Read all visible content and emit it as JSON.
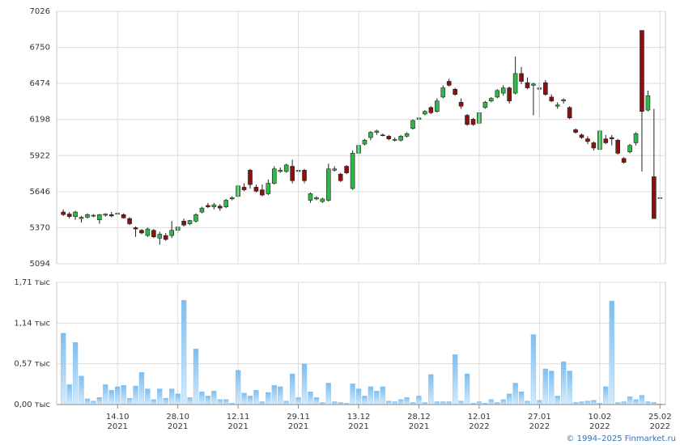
{
  "chart_data": [
    {
      "type": "candlestick",
      "open": [
        5490,
        5475,
        5455,
        5440,
        5450,
        5460,
        5430,
        5465,
        5470,
        5475,
        5470,
        5440,
        5370,
        5350,
        5310,
        5350,
        5290,
        5310,
        5310,
        5350,
        5420,
        5400,
        5420,
        5490,
        5540,
        5530,
        5535,
        5530,
        5590,
        5610,
        5680,
        5810,
        5680,
        5660,
        5630,
        5710,
        5800,
        5800,
        5840,
        5800,
        5810,
        5580,
        5590,
        5570,
        5580,
        5810,
        5780,
        5840,
        5670,
        5940,
        6010,
        6060,
        6100,
        6080,
        6070,
        6040,
        6040,
        6070,
        6130,
        6200,
        6240,
        6290,
        6260,
        6370,
        6490,
        6430,
        6330,
        6230,
        6200,
        6170,
        6290,
        6340,
        6370,
        6400,
        6440,
        6400,
        6550,
        6480,
        6460,
        6430,
        6480,
        6370,
        6300,
        6340,
        6290,
        6120,
        6080,
        6050,
        6020,
        5970,
        6050,
        6060,
        6040,
        5900,
        5950,
        6020,
        6880,
        6270,
        5760,
        5600
      ],
      "high": [
        5510,
        5490,
        5500,
        5460,
        5480,
        5475,
        5475,
        5480,
        5490,
        5490,
        5480,
        5450,
        5380,
        5360,
        5370,
        5360,
        5340,
        5330,
        5420,
        5380,
        5440,
        5430,
        5480,
        5530,
        5560,
        5560,
        5550,
        5590,
        5610,
        5700,
        5710,
        5820,
        5700,
        5700,
        5740,
        5840,
        5830,
        5860,
        5890,
        5820,
        5820,
        5640,
        5610,
        5600,
        5860,
        5840,
        5790,
        5850,
        5960,
        6010,
        6050,
        6110,
        6120,
        6090,
        6080,
        6060,
        6080,
        6100,
        6200,
        6220,
        6270,
        6300,
        6360,
        6460,
        6510,
        6440,
        6360,
        6240,
        6210,
        6270,
        6340,
        6370,
        6430,
        6460,
        6450,
        6680,
        6600,
        6520,
        6480,
        6480,
        6500,
        6390,
        6330,
        6360,
        6300,
        6130,
        6090,
        6070,
        6030,
        6120,
        6080,
        6080,
        6050,
        5910,
        6010,
        6100,
        6880,
        6420,
        6280,
        5600
      ],
      "low": [
        5460,
        5440,
        5430,
        5410,
        5440,
        5450,
        5400,
        5455,
        5450,
        5465,
        5440,
        5390,
        5300,
        5320,
        5300,
        5290,
        5240,
        5270,
        5290,
        5330,
        5380,
        5390,
        5410,
        5480,
        5520,
        5510,
        5500,
        5520,
        5580,
        5600,
        5650,
        5670,
        5640,
        5610,
        5620,
        5700,
        5790,
        5790,
        5710,
        5790,
        5710,
        5560,
        5580,
        5560,
        5570,
        5800,
        5720,
        5780,
        5660,
        5930,
        6000,
        6040,
        6080,
        6070,
        6040,
        6030,
        6030,
        6060,
        6120,
        6180,
        6230,
        6240,
        6250,
        6360,
        6450,
        6380,
        6280,
        6150,
        6150,
        6160,
        6280,
        6330,
        6360,
        6380,
        6320,
        6390,
        6470,
        6430,
        6230,
        6210,
        6380,
        6330,
        6280,
        6320,
        6200,
        6090,
        6050,
        6010,
        5960,
        5960,
        6010,
        6000,
        5930,
        5860,
        5940,
        6000,
        5800,
        6260,
        5440,
        5600
      ],
      "close": [
        5470,
        5455,
        5490,
        5450,
        5470,
        5465,
        5470,
        5475,
        5460,
        5480,
        5445,
        5400,
        5360,
        5330,
        5360,
        5300,
        5320,
        5280,
        5350,
        5375,
        5390,
        5425,
        5470,
        5520,
        5530,
        5545,
        5520,
        5580,
        5600,
        5690,
        5660,
        5700,
        5650,
        5620,
        5710,
        5820,
        5810,
        5850,
        5730,
        5810,
        5730,
        5630,
        5600,
        5590,
        5820,
        5820,
        5730,
        5790,
        5940,
        6000,
        6040,
        6100,
        6110,
        6075,
        6050,
        6045,
        6070,
        6090,
        6190,
        6210,
        6260,
        6250,
        6340,
        6440,
        6460,
        6390,
        6300,
        6160,
        6160,
        6250,
        6330,
        6360,
        6420,
        6440,
        6340,
        6550,
        6490,
        6440,
        6470,
        6440,
        6390,
        6340,
        6310,
        6350,
        6210,
        6100,
        6060,
        6030,
        5980,
        6110,
        6020,
        6050,
        5940,
        5870,
        6000,
        6090,
        6260,
        6380,
        5440,
        5600
      ],
      "ylim": [
        5094,
        7026
      ],
      "yticks": [
        5094,
        5370,
        5646,
        5922,
        6198,
        6474,
        6750,
        7026
      ],
      "up_color": "#2eb84a",
      "down_color": "#8b1010",
      "grid": true
    },
    {
      "type": "bar",
      "categories": [
        null,
        null,
        null,
        null,
        null,
        null,
        null,
        null,
        null,
        "14.10",
        null,
        null,
        null,
        null,
        null,
        null,
        null,
        null,
        null,
        "28.10",
        null,
        null,
        null,
        null,
        null,
        null,
        null,
        null,
        null,
        "12.11",
        null,
        null,
        null,
        null,
        null,
        null,
        null,
        null,
        null,
        "29.11",
        null,
        null,
        null,
        null,
        null,
        null,
        null,
        null,
        null,
        "13.12",
        null,
        null,
        null,
        null,
        null,
        null,
        null,
        null,
        null,
        "28.12",
        null,
        null,
        null,
        null,
        null,
        null,
        null,
        null,
        null,
        "12.01",
        null,
        null,
        null,
        null,
        null,
        null,
        null,
        null,
        null,
        "27.01",
        null,
        null,
        null,
        null,
        null,
        null,
        null,
        null,
        null,
        "10.02",
        null,
        null,
        null,
        null,
        null,
        null,
        null,
        null,
        null,
        "25.02"
      ],
      "category_years": [
        null,
        null,
        null,
        null,
        null,
        null,
        null,
        null,
        null,
        "2021",
        null,
        null,
        null,
        null,
        null,
        null,
        null,
        null,
        null,
        "2021",
        null,
        null,
        null,
        null,
        null,
        null,
        null,
        null,
        null,
        "2021",
        null,
        null,
        null,
        null,
        null,
        null,
        null,
        null,
        null,
        "2021",
        null,
        null,
        null,
        null,
        null,
        null,
        null,
        null,
        null,
        "2021",
        null,
        null,
        null,
        null,
        null,
        null,
        null,
        null,
        null,
        "2021",
        null,
        null,
        null,
        null,
        null,
        null,
        null,
        null,
        null,
        "2022",
        null,
        null,
        null,
        null,
        null,
        null,
        null,
        null,
        null,
        "2022",
        null,
        null,
        null,
        null,
        null,
        null,
        null,
        null,
        null,
        "2022",
        null,
        null,
        null,
        null,
        null,
        null,
        null,
        null,
        null,
        "2022"
      ],
      "values": [
        1.0,
        0.28,
        0.87,
        0.4,
        0.08,
        0.05,
        0.1,
        0.28,
        0.2,
        0.25,
        0.27,
        0.09,
        0.26,
        0.45,
        0.22,
        0.07,
        0.22,
        0.09,
        0.22,
        0.15,
        1.46,
        0.1,
        0.78,
        0.18,
        0.12,
        0.19,
        0.07,
        0.07,
        0.02,
        0.48,
        0.16,
        0.12,
        0.2,
        0.04,
        0.17,
        0.27,
        0.25,
        0.05,
        0.43,
        0.1,
        0.57,
        0.18,
        0.1,
        0.03,
        0.3,
        0.04,
        0.03,
        0.02,
        0.29,
        0.22,
        0.12,
        0.25,
        0.19,
        0.25,
        0.05,
        0.04,
        0.07,
        0.1,
        0.03,
        0.12,
        0.03,
        0.42,
        0.04,
        0.04,
        0.04,
        0.7,
        0.05,
        0.43,
        0.02,
        0.04,
        0.02,
        0.07,
        0.03,
        0.07,
        0.15,
        0.3,
        0.18,
        0.05,
        0.98,
        0.06,
        0.5,
        0.47,
        0.12,
        0.6,
        0.47,
        0.03,
        0.04,
        0.05,
        0.06,
        0.02,
        0.25,
        1.45,
        0.03,
        0.04,
        0.11,
        0.07,
        0.13,
        0.04,
        0.03,
        0.01
      ],
      "ylim": [
        0,
        1.71
      ],
      "yticks": [
        {
          "value": 0,
          "label": "0,00 тыс"
        },
        {
          "value": 0.57,
          "label": "0,57 тыс"
        },
        {
          "value": 1.14,
          "label": "1,14 тыс"
        },
        {
          "value": 1.71,
          "label": "1,71 тыс"
        }
      ],
      "color": "#7dbef0",
      "grid": true
    }
  ],
  "footer": "© 1994–2025 Finmarket.ru"
}
